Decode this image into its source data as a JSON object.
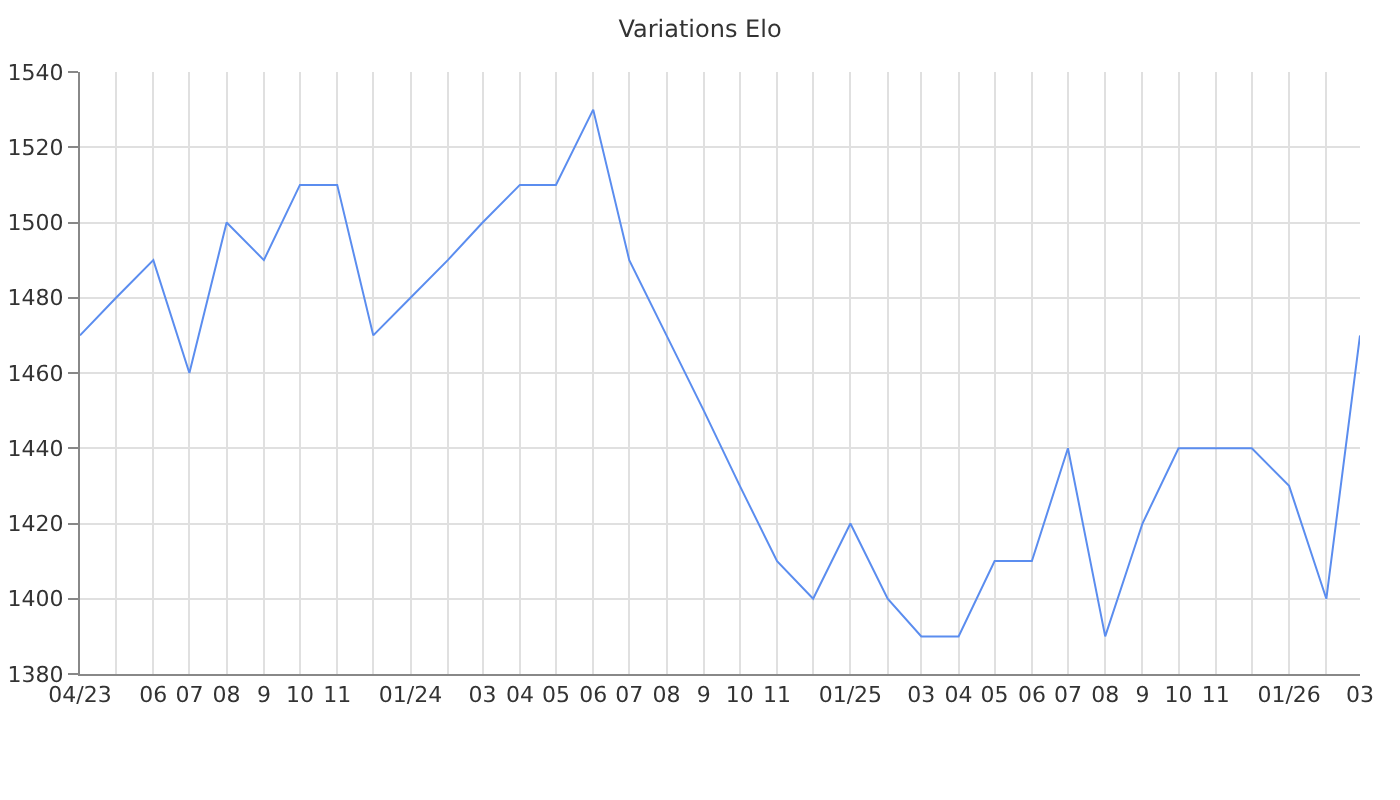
{
  "chart_data": {
    "type": "line",
    "title": "Variations Elo",
    "x": [
      "2023-04",
      "2023-05",
      "2023-06",
      "2023-07",
      "2023-08",
      "2023-09",
      "2023-10",
      "2023-11",
      "2023-12",
      "2024-01",
      "2024-02",
      "2024-03",
      "2024-04",
      "2024-05",
      "2024-06",
      "2024-07",
      "2024-08",
      "2024-09",
      "2024-10",
      "2024-11",
      "2024-12",
      "2025-01",
      "2025-02",
      "2025-03",
      "2025-04",
      "2025-05",
      "2025-06",
      "2025-07",
      "2025-08",
      "2025-09",
      "2025-10",
      "2025-11",
      "2025-12",
      "2026-01",
      "2026-02",
      "2026-03"
    ],
    "series": [
      {
        "color": "#5b8def",
        "values": [
          1470,
          1480,
          1490,
          1460,
          1500,
          1490,
          1510,
          1510,
          1470,
          1480,
          1490,
          1500,
          1510,
          1510,
          1530,
          1490,
          1470,
          1450,
          1430,
          1410,
          1400,
          1420,
          1400,
          1390,
          1390,
          1410,
          1410,
          1440,
          1390,
          1420,
          1440,
          1440,
          1440,
          1430,
          1400,
          1470
        ]
      }
    ],
    "xlim": [
      "2023-04",
      "2026-03"
    ],
    "xticks": [
      {
        "value": "2023-04",
        "label": "04/23"
      },
      {
        "value": "2023-05",
        "label": null
      },
      {
        "value": "2023-06",
        "label": "06"
      },
      {
        "value": "2023-07",
        "label": "07"
      },
      {
        "value": "2023-08",
        "label": "08"
      },
      {
        "value": "2023-09",
        "label": "9"
      },
      {
        "value": "2023-10",
        "label": "10"
      },
      {
        "value": "2023-11",
        "label": "11"
      },
      {
        "value": "2023-12",
        "label": null
      },
      {
        "value": "2024-01",
        "label": "01/24"
      },
      {
        "value": "2024-02",
        "label": null
      },
      {
        "value": "2024-03",
        "label": "03"
      },
      {
        "value": "2024-04",
        "label": "04"
      },
      {
        "value": "2024-05",
        "label": "05"
      },
      {
        "value": "2024-06",
        "label": "06"
      },
      {
        "value": "2024-07",
        "label": "07"
      },
      {
        "value": "2024-08",
        "label": "08"
      },
      {
        "value": "2024-09",
        "label": "9"
      },
      {
        "value": "2024-10",
        "label": "10"
      },
      {
        "value": "2024-11",
        "label": "11"
      },
      {
        "value": "2024-12",
        "label": null
      },
      {
        "value": "2025-01",
        "label": "01/25"
      },
      {
        "value": "2025-02",
        "label": null
      },
      {
        "value": "2025-03",
        "label": "03"
      },
      {
        "value": "2025-04",
        "label": "04"
      },
      {
        "value": "2025-05",
        "label": "05"
      },
      {
        "value": "2025-06",
        "label": "06"
      },
      {
        "value": "2025-07",
        "label": "07"
      },
      {
        "value": "2025-08",
        "label": "08"
      },
      {
        "value": "2025-09",
        "label": "9"
      },
      {
        "value": "2025-10",
        "label": "10"
      },
      {
        "value": "2025-11",
        "label": "11"
      },
      {
        "value": "2025-12",
        "label": null
      },
      {
        "value": "2026-01",
        "label": "01/26"
      },
      {
        "value": "2026-02",
        "label": null
      },
      {
        "value": "2026-03",
        "label": "03"
      }
    ],
    "ylim": [
      1380,
      1540
    ],
    "yticks": [
      1380,
      1400,
      1420,
      1440,
      1460,
      1480,
      1500,
      1520,
      1540
    ],
    "grid": true,
    "marker": "none",
    "line_style": "solid"
  }
}
